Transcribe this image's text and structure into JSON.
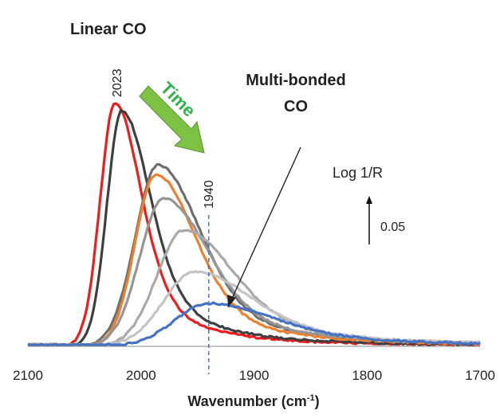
{
  "chart_data": {
    "type": "line",
    "title": "",
    "xlabel": "Wavenumber (cm",
    "xlabel_sup": "-1",
    "xlabel_close": ")",
    "ylabel": "",
    "x_reversed": true,
    "xlim": [
      2100,
      1700
    ],
    "x_ticks": [
      "2100",
      "2000",
      "1900",
      "1800",
      "1700"
    ],
    "grid": false,
    "legend": "none",
    "annotations": {
      "linear": "Linear CO",
      "multi_line1": "Multi-bonded",
      "multi_line2": "CO",
      "time": "Time",
      "peak_2023": "2023",
      "peak_1940": "1940",
      "scale_label": "Log 1/R",
      "scale_value": "0.05"
    },
    "colors": {
      "red": "#ee1c1c",
      "dark": "#3f3f3f",
      "gray1": "#6e6e6e",
      "orange": "#ef7f2d",
      "gray2": "#959595",
      "gray3": "#a9a9a9",
      "gray4": "#c4c4c4",
      "blue": "#4472c4",
      "arrow_green": "#7dc242",
      "time_text": "#2fb24a"
    },
    "series": [
      {
        "color": "red",
        "peak_x": 2023,
        "peak_y": 0.153,
        "w_left": 13,
        "w_right": 22,
        "tail": 0.5
      },
      {
        "color": "dark",
        "peak_x": 2017,
        "peak_y": 0.148,
        "w_left": 13,
        "w_right": 24,
        "tail": 0.52
      },
      {
        "color": "gray1",
        "peak_x": 1985,
        "peak_y": 0.114,
        "w_left": 20,
        "w_right": 36,
        "tail": 0.45
      },
      {
        "color": "orange",
        "peak_x": 1987,
        "peak_y": 0.108,
        "w_left": 18,
        "w_right": 34,
        "tail": 0.45
      },
      {
        "color": "gray2",
        "peak_x": 1980,
        "peak_y": 0.093,
        "w_left": 21,
        "w_right": 38,
        "tail": 0.48
      },
      {
        "color": "gray3",
        "peak_x": 1962,
        "peak_y": 0.073,
        "w_left": 24,
        "w_right": 42,
        "tail": 0.5
      },
      {
        "color": "gray4",
        "peak_x": 1952,
        "peak_y": 0.047,
        "w_left": 28,
        "w_right": 48,
        "tail": 0.55
      },
      {
        "color": "blue",
        "peak_x": 1940,
        "peak_y": 0.027,
        "w_left": 30,
        "w_right": 56,
        "tail": 0.55
      }
    ]
  }
}
